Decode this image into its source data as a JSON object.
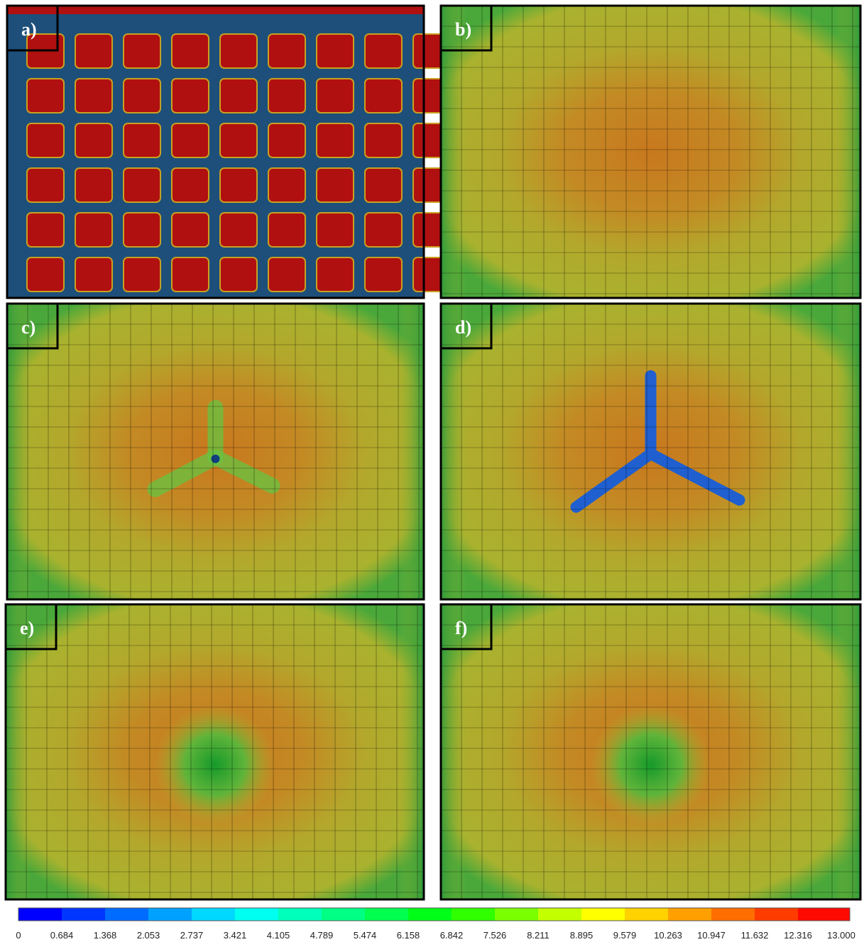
{
  "panels": [
    {
      "label": "a)"
    },
    {
      "label": "b)"
    },
    {
      "label": "c)"
    },
    {
      "label": "d)"
    },
    {
      "label": "e)"
    },
    {
      "label": "f)"
    }
  ],
  "colorbar": {
    "ticks": [
      "0",
      "0.684",
      "1.368",
      "2.053",
      "2.737",
      "3.421",
      "4.105",
      "4.789",
      "5.474",
      "6.158",
      "6.842",
      "7.526",
      "8.211",
      "8.895",
      "9.579",
      "10.263",
      "10.947",
      "11.632",
      "12.316",
      "13.000"
    ]
  }
}
